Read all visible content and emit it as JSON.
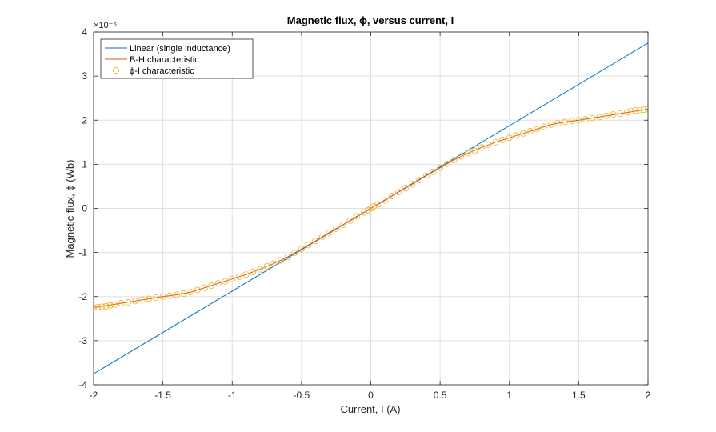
{
  "chart_data": {
    "type": "line",
    "title": "Magnetic  flux,  ϕ,  versus  current,  I",
    "xlabel": "Current, I (A)",
    "ylabel": "Magnetic  flux,  ϕ  (Wb)",
    "y_exponent_label": "×10⁻⁵",
    "y_scale_factor": 1e-05,
    "xlim": [
      -2,
      2
    ],
    "ylim": [
      -4,
      4
    ],
    "x_ticks": [
      -2,
      -1.5,
      -1,
      -0.5,
      0,
      0.5,
      1,
      1.5,
      2
    ],
    "x_tick_labels": [
      "-2",
      "-1.5",
      "-1",
      "-0.5",
      "0",
      "0.5",
      "1",
      "1.5",
      "2"
    ],
    "y_ticks": [
      -4,
      -3,
      -2,
      -1,
      0,
      1,
      2,
      3,
      4
    ],
    "y_tick_labels": [
      "-4",
      "-3",
      "-2",
      "-1",
      "0",
      "1",
      "2",
      "3",
      "4"
    ],
    "grid": true,
    "legend_position": "top-left",
    "series": [
      {
        "name": "Linear (single inductance)",
        "style": "line",
        "color": "#0072BD",
        "x": [
          -2,
          2
        ],
        "y": [
          -3.75,
          3.75
        ]
      },
      {
        "name": "B-H characteristic",
        "style": "line",
        "color": "#D95319",
        "x": [
          -2,
          -1.9,
          -1.8,
          -1.7,
          -1.6,
          -1.5,
          -1.4,
          -1.3,
          -1.2,
          -1.1,
          -1.0,
          -0.9,
          -0.8,
          -0.7,
          -0.6,
          -0.5,
          -0.4,
          -0.3,
          -0.2,
          -0.1,
          0,
          0.1,
          0.2,
          0.3,
          0.4,
          0.5,
          0.6,
          0.7,
          0.8,
          0.9,
          1.0,
          1.1,
          1.2,
          1.3,
          1.4,
          1.5,
          1.6,
          1.7,
          1.8,
          1.9,
          2.0
        ],
        "y": [
          -2.25,
          -2.2,
          -2.15,
          -2.1,
          -2.05,
          -2.0,
          -1.96,
          -1.9,
          -1.8,
          -1.7,
          -1.6,
          -1.5,
          -1.38,
          -1.25,
          -1.1,
          -0.92,
          -0.74,
          -0.55,
          -0.37,
          -0.18,
          0,
          0.18,
          0.37,
          0.55,
          0.74,
          0.92,
          1.1,
          1.25,
          1.38,
          1.5,
          1.6,
          1.7,
          1.8,
          1.9,
          1.96,
          2.0,
          2.05,
          2.1,
          2.15,
          2.2,
          2.25
        ]
      },
      {
        "name": "ϕ-I  characteristic",
        "style": "markers",
        "color": "#EDB120",
        "x": [
          -2.0,
          -1.97,
          -1.94,
          -1.91,
          -1.88,
          -1.85,
          -1.8,
          -1.75,
          -1.7,
          -1.65,
          -1.6,
          -1.55,
          -1.5,
          -1.45,
          -1.4,
          -1.35,
          -1.3,
          -1.25,
          -1.2,
          -1.15,
          -1.1,
          -1.05,
          -1.0,
          -0.95,
          -0.9,
          -0.85,
          -0.8,
          -0.75,
          -0.7,
          -0.65,
          -0.6,
          -0.55,
          -0.5,
          -0.45,
          -0.4,
          -0.35,
          -0.3,
          -0.25,
          -0.2,
          -0.15,
          -0.1,
          -0.05,
          -0.02,
          0,
          0.02,
          0.05,
          0.1,
          0.15,
          0.2,
          0.25,
          0.3,
          0.35,
          0.4,
          0.45,
          0.5,
          0.55,
          0.6,
          0.65,
          0.7,
          0.75,
          0.8,
          0.85,
          0.9,
          0.95,
          1.0,
          1.05,
          1.1,
          1.15,
          1.2,
          1.25,
          1.3,
          1.35,
          1.4,
          1.45,
          1.5,
          1.55,
          1.6,
          1.65,
          1.7,
          1.75,
          1.8,
          1.85,
          1.88,
          1.91,
          1.94,
          1.97,
          2.0
        ],
        "y": [
          -2.25,
          -2.24,
          -2.23,
          -2.22,
          -2.2,
          -2.18,
          -2.15,
          -2.13,
          -2.1,
          -2.07,
          -2.05,
          -2.02,
          -2.0,
          -1.98,
          -1.96,
          -1.93,
          -1.9,
          -1.85,
          -1.8,
          -1.75,
          -1.7,
          -1.65,
          -1.6,
          -1.55,
          -1.5,
          -1.44,
          -1.38,
          -1.31,
          -1.25,
          -1.18,
          -1.1,
          -1.01,
          -0.92,
          -0.83,
          -0.74,
          -0.64,
          -0.55,
          -0.46,
          -0.37,
          -0.28,
          -0.18,
          -0.09,
          -0.04,
          0,
          0.04,
          0.09,
          0.18,
          0.28,
          0.37,
          0.46,
          0.55,
          0.64,
          0.74,
          0.83,
          0.92,
          1.01,
          1.1,
          1.18,
          1.25,
          1.31,
          1.38,
          1.44,
          1.5,
          1.55,
          1.6,
          1.65,
          1.7,
          1.75,
          1.8,
          1.85,
          1.9,
          1.93,
          1.96,
          1.98,
          2.0,
          2.02,
          2.05,
          2.07,
          2.1,
          2.13,
          2.15,
          2.18,
          2.2,
          2.22,
          2.23,
          2.24,
          2.25
        ]
      }
    ]
  }
}
